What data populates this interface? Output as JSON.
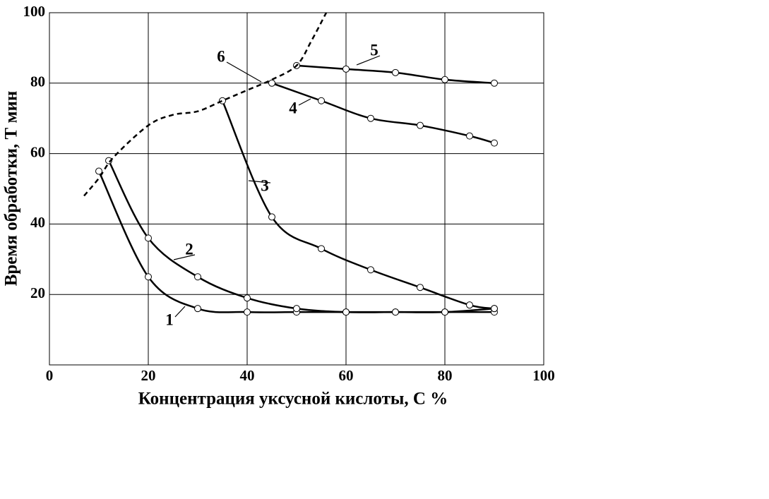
{
  "chart_data": {
    "type": "line",
    "x_label": "Концентрация уксусной кислоты, С %",
    "y_label": "Время обработки, Т мин",
    "xlim": [
      0,
      100
    ],
    "ylim": [
      0,
      100
    ],
    "xticks": [
      0,
      20,
      40,
      60,
      80,
      100
    ],
    "yticks": [
      20,
      40,
      60,
      80,
      100
    ],
    "grid": true,
    "series": [
      {
        "name": "1",
        "color": "#000000",
        "dashed": false,
        "markers": true,
        "x": [
          10,
          20,
          30,
          40,
          50,
          60,
          70,
          80,
          90
        ],
        "values": [
          55,
          25,
          16,
          15,
          15,
          15,
          15,
          15,
          15
        ]
      },
      {
        "name": "2",
        "color": "#000000",
        "dashed": false,
        "markers": true,
        "x": [
          12,
          20,
          30,
          40,
          50,
          60,
          70,
          80,
          90
        ],
        "values": [
          58,
          36,
          25,
          19,
          16,
          15,
          15,
          15,
          16
        ]
      },
      {
        "name": "3",
        "color": "#000000",
        "dashed": false,
        "markers": true,
        "x": [
          35,
          45,
          55,
          65,
          75,
          85,
          90
        ],
        "values": [
          75,
          42,
          33,
          27,
          22,
          17,
          16
        ]
      },
      {
        "name": "4",
        "color": "#000000",
        "dashed": false,
        "markers": true,
        "x": [
          45,
          55,
          65,
          75,
          85,
          90
        ],
        "values": [
          80,
          75,
          70,
          68,
          65,
          63
        ]
      },
      {
        "name": "5",
        "color": "#000000",
        "dashed": false,
        "markers": true,
        "x": [
          50,
          60,
          70,
          80,
          90
        ],
        "values": [
          85,
          84,
          83,
          81,
          80
        ]
      },
      {
        "name": "6",
        "color": "#000000",
        "dashed": true,
        "markers": false,
        "x": [
          7,
          10,
          13,
          20,
          25,
          30,
          35,
          40,
          45,
          50,
          53,
          56
        ],
        "values": [
          48,
          53,
          59,
          68,
          71,
          72,
          75,
          78,
          81,
          85,
          92,
          100
        ]
      }
    ]
  }
}
